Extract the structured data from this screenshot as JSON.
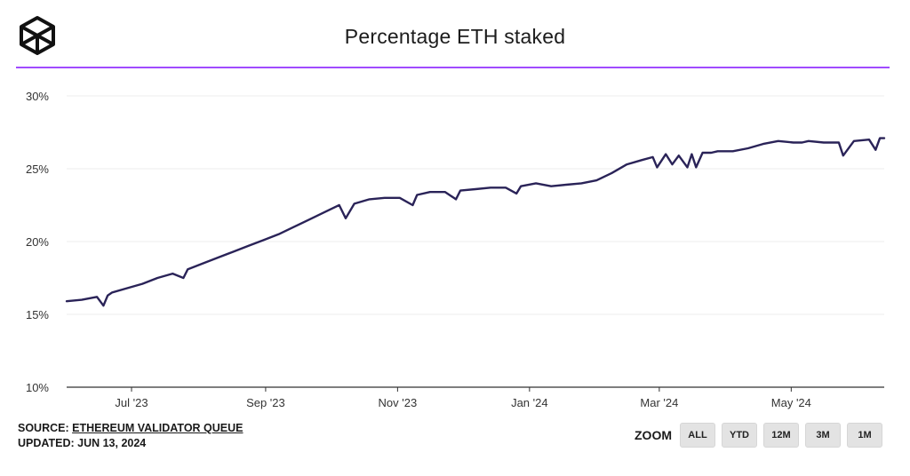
{
  "header": {
    "title": "Percentage ETH staked",
    "logo_icon": "cube-logo-icon",
    "accent_color": "#a04bff"
  },
  "chart_data": {
    "type": "line",
    "title": "Percentage ETH staked",
    "xlabel": "",
    "ylabel": "",
    "x_tick_labels": [
      "Jul '23",
      "Sep '23",
      "Nov '23",
      "Jan '24",
      "Mar '24",
      "May '24"
    ],
    "x_tick_dates": [
      "2023-07-01",
      "2023-09-01",
      "2023-11-01",
      "2024-01-01",
      "2024-03-01",
      "2024-05-01"
    ],
    "xlim": [
      "2023-06-01",
      "2024-06-13"
    ],
    "y_tick_labels": [
      "10%",
      "15%",
      "20%",
      "25%",
      "30%"
    ],
    "ylim": [
      10,
      30
    ],
    "grid": true,
    "line_color": "#2a2358",
    "series": [
      {
        "x": [
          "2023-06-01",
          "2023-06-08",
          "2023-06-15",
          "2023-06-18",
          "2023-06-20",
          "2023-06-22",
          "2023-06-29",
          "2023-07-06",
          "2023-07-13",
          "2023-07-20",
          "2023-07-25",
          "2023-07-27",
          "2023-08-03",
          "2023-08-10",
          "2023-08-17",
          "2023-08-24",
          "2023-08-31",
          "2023-09-07",
          "2023-09-14",
          "2023-09-21",
          "2023-09-28",
          "2023-10-05",
          "2023-10-08",
          "2023-10-12",
          "2023-10-19",
          "2023-10-26",
          "2023-11-02",
          "2023-11-08",
          "2023-11-10",
          "2023-11-16",
          "2023-11-23",
          "2023-11-28",
          "2023-11-30",
          "2023-12-07",
          "2023-12-14",
          "2023-12-21",
          "2023-12-26",
          "2023-12-28",
          "2024-01-04",
          "2024-01-11",
          "2024-01-18",
          "2024-01-25",
          "2024-02-01",
          "2024-02-08",
          "2024-02-15",
          "2024-02-22",
          "2024-02-27",
          "2024-02-29",
          "2024-03-04",
          "2024-03-07",
          "2024-03-10",
          "2024-03-14",
          "2024-03-16",
          "2024-03-18",
          "2024-03-21",
          "2024-03-25",
          "2024-03-28",
          "2024-04-04",
          "2024-04-11",
          "2024-04-18",
          "2024-04-25",
          "2024-05-02",
          "2024-05-06",
          "2024-05-09",
          "2024-05-16",
          "2024-05-23",
          "2024-05-25",
          "2024-05-30",
          "2024-06-06",
          "2024-06-09",
          "2024-06-11",
          "2024-06-13"
        ],
        "values": [
          15.9,
          16.0,
          16.2,
          15.6,
          16.3,
          16.5,
          16.8,
          17.1,
          17.5,
          17.8,
          17.5,
          18.1,
          18.5,
          18.9,
          19.3,
          19.7,
          20.1,
          20.5,
          21.0,
          21.5,
          22.0,
          22.5,
          21.6,
          22.6,
          22.9,
          23.0,
          23.0,
          22.5,
          23.2,
          23.4,
          23.4,
          22.9,
          23.5,
          23.6,
          23.7,
          23.7,
          23.3,
          23.8,
          24.0,
          23.8,
          23.9,
          24.0,
          24.2,
          24.7,
          25.3,
          25.6,
          25.8,
          25.1,
          26.0,
          25.3,
          25.9,
          25.1,
          26.0,
          25.1,
          26.1,
          26.1,
          26.2,
          26.2,
          26.4,
          26.7,
          26.9,
          26.8,
          26.8,
          26.9,
          26.8,
          26.8,
          25.9,
          26.9,
          27.0,
          26.3,
          27.1,
          27.1
        ]
      }
    ]
  },
  "footer": {
    "source_prefix": "SOURCE: ",
    "source_link": "ETHEREUM VALIDATOR QUEUE",
    "updated": "UPDATED: JUN 13, 2024"
  },
  "zoom": {
    "label": "ZOOM",
    "buttons": [
      "ALL",
      "YTD",
      "12M",
      "3M",
      "1M"
    ]
  }
}
